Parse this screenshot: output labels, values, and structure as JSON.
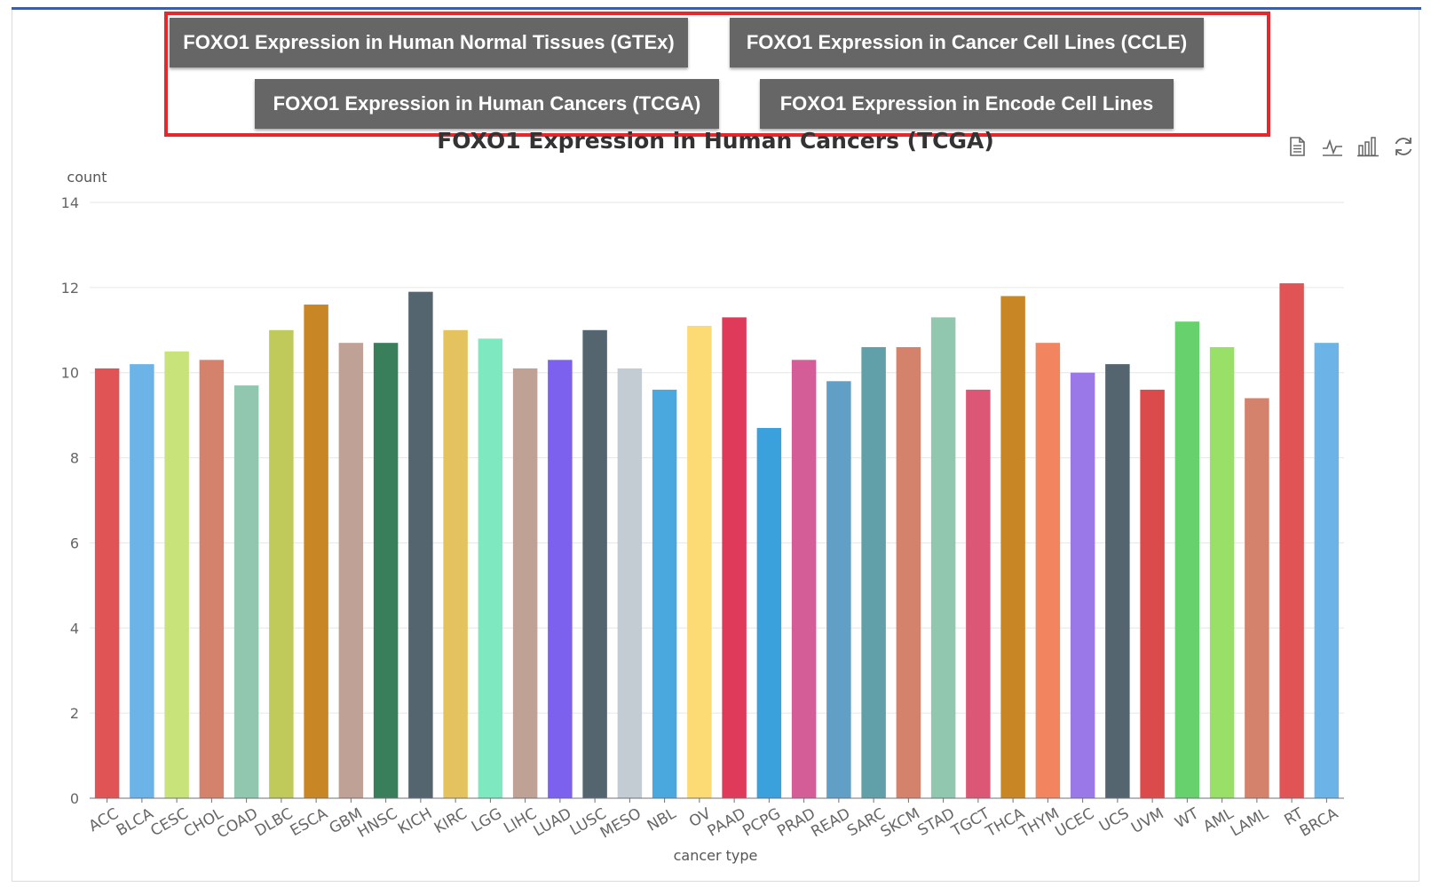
{
  "tabs": [
    {
      "label": "FOXO1 Expression in Human Normal Tissues (GTEx)"
    },
    {
      "label": "FOXO1 Expression in Cancer Cell Lines (CCLE)"
    },
    {
      "label": "FOXO1 Expression in Human Cancers (TCGA)"
    },
    {
      "label": "FOXO1 Expression in Encode Cell Lines"
    }
  ],
  "colors": {
    "tab_bg": "#666666",
    "tab_text": "#ffffff",
    "highlight_border": "#e8272d",
    "top_line": "#3a5fa8"
  },
  "toolbox": [
    {
      "icon": "data-view-icon"
    },
    {
      "icon": "line-chart-icon"
    },
    {
      "icon": "bar-chart-icon"
    },
    {
      "icon": "restore-icon"
    }
  ],
  "chart_data": {
    "type": "bar",
    "title": "FOXO1 Expression in Human Cancers (TCGA)",
    "xlabel": "cancer type",
    "ylabel": "count",
    "ylim": [
      0,
      14
    ],
    "yticks": [
      "0",
      "2",
      "4",
      "6",
      "8",
      "10",
      "12",
      "14"
    ],
    "grid": true,
    "legend": "none",
    "categories": [
      "ACC",
      "BLCA",
      "CESC",
      "CHOL",
      "COAD",
      "DLBC",
      "ESCA",
      "GBM",
      "HNSC",
      "KICH",
      "KIRC",
      "LGG",
      "LIHC",
      "LUAD",
      "LUSC",
      "MESO",
      "NBL",
      "OV",
      "PAAD",
      "PCPG",
      "PRAD",
      "READ",
      "SARC",
      "SKCM",
      "STAD",
      "TGCT",
      "THCA",
      "THYM",
      "UCEC",
      "UCS",
      "UVM",
      "WT",
      "AML",
      "LAML",
      "RT",
      "BRCA"
    ],
    "values": [
      10.1,
      10.2,
      10.5,
      10.3,
      9.7,
      11.0,
      11.6,
      10.7,
      10.7,
      11.9,
      11.0,
      10.8,
      10.1,
      10.3,
      11.0,
      10.1,
      9.6,
      11.1,
      11.3,
      8.7,
      10.3,
      9.8,
      10.6,
      10.6,
      11.3,
      9.6,
      11.8,
      10.7,
      10.0,
      10.2,
      9.6,
      11.2,
      10.6,
      9.4,
      12.1,
      10.7
    ],
    "bar_colors": [
      "#e05455",
      "#6cb4e8",
      "#c7e37a",
      "#d4826b",
      "#91c7ae",
      "#bfca5b",
      "#c98624",
      "#bfa196",
      "#3a7f5c",
      "#546570",
      "#e4c25d",
      "#7ee8c0",
      "#bfa196",
      "#7b61ee",
      "#546570",
      "#c4ccd3",
      "#4aa8de",
      "#fddb74",
      "#e03a5b",
      "#3ba1dc",
      "#d45d97",
      "#619fc6",
      "#61a0a8",
      "#d4826b",
      "#91c7ae",
      "#dc5676",
      "#c98624",
      "#f28560",
      "#9b78e8",
      "#546570",
      "#dc4b4b",
      "#67d16e",
      "#98e068",
      "#d4826b",
      "#e05455",
      "#6cb4e8"
    ]
  }
}
